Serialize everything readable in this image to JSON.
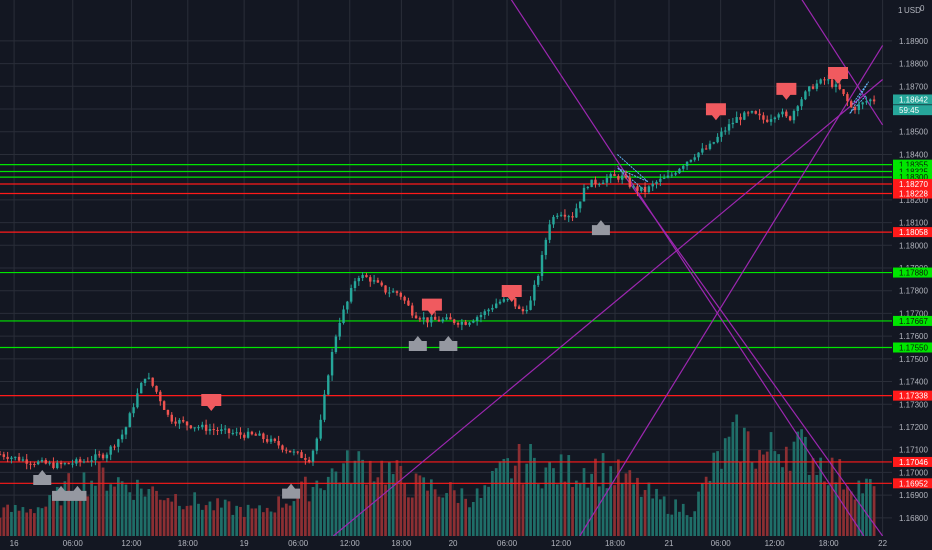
{
  "chart_data": {
    "type": "candlestick",
    "currency": "USD",
    "scale_top_label": "1",
    "scale_top_value": "0",
    "ylim": [
      1.1672,
      1.1908
    ],
    "y_ticks": [
      "1.16800",
      "1.16900",
      "1.17000",
      "1.17100",
      "1.17200",
      "1.17300",
      "1.17400",
      "1.17500",
      "1.17600",
      "1.17700",
      "1.17800",
      "1.17900",
      "1.18000",
      "1.18100",
      "1.18200",
      "1.18300",
      "1.18400",
      "1.18500",
      "1.18600",
      "1.18700",
      "1.18800",
      "1.18900"
    ],
    "x_ticks": [
      {
        "label": "16",
        "t": 0.6
      },
      {
        "label": "06:00",
        "t": 3.1
      },
      {
        "label": "12:00",
        "t": 5.6
      },
      {
        "label": "18:00",
        "t": 8.0
      },
      {
        "label": "19",
        "t": 10.4
      },
      {
        "label": "06:00",
        "t": 12.7
      },
      {
        "label": "12:00",
        "t": 14.9
      },
      {
        "label": "18:00",
        "t": 17.1
      },
      {
        "label": "20",
        "t": 19.3
      },
      {
        "label": "06:00",
        "t": 21.6
      },
      {
        "label": "12:00",
        "t": 23.9
      },
      {
        "label": "18:00",
        "t": 26.2
      },
      {
        "label": "21",
        "t": 28.5
      },
      {
        "label": "06:00",
        "t": 30.7
      },
      {
        "label": "12:00",
        "t": 33.0
      },
      {
        "label": "18:00",
        "t": 35.3
      },
      {
        "label": "22",
        "t": 37.6
      }
    ],
    "horizontal_levels": [
      {
        "price": 1.18355,
        "label": "1.18355",
        "color": "#00e600"
      },
      {
        "price": 1.18325,
        "label": "1.18325",
        "color": "#00e600"
      },
      {
        "price": 1.183,
        "label": "1.18300",
        "color": "#00e600"
      },
      {
        "price": 1.1827,
        "label": "1.18270",
        "color": "#ff1a1a"
      },
      {
        "price": 1.18228,
        "label": "1.18228",
        "color": "#ff1a1a"
      },
      {
        "price": 1.18058,
        "label": "1.18058",
        "color": "#ff1a1a"
      },
      {
        "price": 1.1788,
        "label": "1.17880",
        "color": "#00e600"
      },
      {
        "price": 1.17667,
        "label": "1.17667",
        "color": "#00e600"
      },
      {
        "price": 1.1755,
        "label": "1.17550",
        "color": "#00e600"
      },
      {
        "price": 1.17338,
        "label": "1.17338",
        "color": "#ff1a1a"
      },
      {
        "price": 1.17046,
        "label": "1.17046",
        "color": "#ff1a1a"
      },
      {
        "price": 1.16952,
        "label": "1.16952",
        "color": "#ff1a1a"
      }
    ],
    "price_badges": [
      {
        "price": 1.18642,
        "label": "1.18642",
        "color": "#26a69a"
      },
      {
        "price": 1.18595,
        "label": "59:45",
        "color": "#26a69a"
      }
    ],
    "trend_lines": [
      {
        "from": [
          20.9,
          1.1922
        ],
        "to": [
          36.8,
          1.1672
        ]
      },
      {
        "from": [
          33.3,
          1.1922
        ],
        "to": [
          37.6,
          1.1853
        ]
      },
      {
        "from": [
          14.2,
          1.1672
        ],
        "to": [
          37.6,
          1.1873
        ]
      },
      {
        "from": [
          24.7,
          1.1672
        ],
        "to": [
          37.6,
          1.1888
        ]
      },
      {
        "from": [
          26.3,
          1.1835
        ],
        "to": [
          37.6,
          1.1672
        ]
      }
    ],
    "wedges": [
      {
        "points": [
          [
            26.3,
            1.184
          ],
          [
            27.6,
            1.1828
          ],
          [
            26.3,
            1.1834
          ],
          [
            27.5,
            1.1824
          ]
        ]
      },
      {
        "points": [
          [
            36.3,
            1.1862
          ],
          [
            37.0,
            1.1872
          ],
          [
            36.2,
            1.1858
          ],
          [
            36.9,
            1.1866
          ]
        ]
      }
    ],
    "signals": [
      {
        "kind": "sell",
        "t": 9.0,
        "price": 1.1731
      },
      {
        "kind": "sell",
        "t": 18.4,
        "price": 1.1773
      },
      {
        "kind": "sell",
        "t": 21.8,
        "price": 1.1779
      },
      {
        "kind": "sell",
        "t": 30.5,
        "price": 1.1859
      },
      {
        "kind": "sell",
        "t": 33.5,
        "price": 1.1868
      },
      {
        "kind": "sell",
        "t": 35.7,
        "price": 1.1875
      },
      {
        "kind": "buy",
        "t": 1.8,
        "price": 1.1698
      },
      {
        "kind": "buy",
        "t": 2.6,
        "price": 1.1691
      },
      {
        "kind": "buy",
        "t": 3.3,
        "price": 1.1691
      },
      {
        "kind": "buy",
        "t": 12.4,
        "price": 1.1692
      },
      {
        "kind": "buy",
        "t": 17.8,
        "price": 1.1757
      },
      {
        "kind": "buy",
        "t": 19.1,
        "price": 1.1757
      },
      {
        "kind": "buy",
        "t": 25.6,
        "price": 1.1808
      }
    ],
    "close_keyframes": [
      [
        0,
        1.1708
      ],
      [
        1.2,
        1.1705
      ],
      [
        2.4,
        1.1703
      ],
      [
        3.6,
        1.1705
      ],
      [
        4.5,
        1.1708
      ],
      [
        5.3,
        1.1718
      ],
      [
        5.8,
        1.1733
      ],
      [
        6.2,
        1.1743
      ],
      [
        6.7,
        1.1735
      ],
      [
        7.2,
        1.1724
      ],
      [
        8.0,
        1.1721
      ],
      [
        9.0,
        1.1719
      ],
      [
        10.0,
        1.1717
      ],
      [
        11.0,
        1.1716
      ],
      [
        11.9,
        1.1712
      ],
      [
        12.6,
        1.1708
      ],
      [
        13.2,
        1.1706
      ],
      [
        13.6,
        1.1718
      ],
      [
        14.0,
        1.1745
      ],
      [
        14.4,
        1.1765
      ],
      [
        14.8,
        1.1775
      ],
      [
        15.2,
        1.1787
      ],
      [
        15.8,
        1.1785
      ],
      [
        16.4,
        1.178
      ],
      [
        17.0,
        1.1779
      ],
      [
        17.6,
        1.177
      ],
      [
        18.2,
        1.1767
      ],
      [
        19.0,
        1.1767
      ],
      [
        19.8,
        1.1766
      ],
      [
        20.6,
        1.177
      ],
      [
        21.2,
        1.1775
      ],
      [
        21.8,
        1.1776
      ],
      [
        22.2,
        1.177
      ],
      [
        22.6,
        1.1775
      ],
      [
        23.0,
        1.179
      ],
      [
        23.4,
        1.181
      ],
      [
        23.8,
        1.1815
      ],
      [
        24.4,
        1.1813
      ],
      [
        25.0,
        1.1827
      ],
      [
        25.5,
        1.1828
      ],
      [
        26.0,
        1.183
      ],
      [
        26.5,
        1.183
      ],
      [
        27.0,
        1.1825
      ],
      [
        27.5,
        1.1824
      ],
      [
        28.0,
        1.1828
      ],
      [
        28.5,
        1.183
      ],
      [
        29.0,
        1.1835
      ],
      [
        29.6,
        1.184
      ],
      [
        30.2,
        1.1843
      ],
      [
        30.8,
        1.185
      ],
      [
        31.4,
        1.1856
      ],
      [
        32.0,
        1.1858
      ],
      [
        32.6,
        1.1855
      ],
      [
        33.2,
        1.1859
      ],
      [
        33.6,
        1.1855
      ],
      [
        34.0,
        1.1863
      ],
      [
        34.6,
        1.187
      ],
      [
        35.2,
        1.1873
      ],
      [
        35.8,
        1.1868
      ],
      [
        36.3,
        1.186
      ],
      [
        36.7,
        1.1862
      ],
      [
        37.0,
        1.1864
      ]
    ],
    "volume_keyframes": [
      [
        0,
        0.2
      ],
      [
        2,
        0.25
      ],
      [
        3,
        0.42
      ],
      [
        4.5,
        0.5
      ],
      [
        5.5,
        0.42
      ],
      [
        7,
        0.35
      ],
      [
        9,
        0.25
      ],
      [
        11,
        0.2
      ],
      [
        12.5,
        0.32
      ],
      [
        13.5,
        0.45
      ],
      [
        14.5,
        0.55
      ],
      [
        15.5,
        0.6
      ],
      [
        16.5,
        0.55
      ],
      [
        17.5,
        0.42
      ],
      [
        18.5,
        0.4
      ],
      [
        19.5,
        0.35
      ],
      [
        20.5,
        0.32
      ],
      [
        21.5,
        0.55
      ],
      [
        22.5,
        0.62
      ],
      [
        23.5,
        0.52
      ],
      [
        24.5,
        0.55
      ],
      [
        25.5,
        0.58
      ],
      [
        26.5,
        0.48
      ],
      [
        27.5,
        0.36
      ],
      [
        28.5,
        0.25
      ],
      [
        29.5,
        0.22
      ],
      [
        30.5,
        0.6
      ],
      [
        31.5,
        0.82
      ],
      [
        32.5,
        0.66
      ],
      [
        33.5,
        0.78
      ],
      [
        34.5,
        0.68
      ],
      [
        35.5,
        0.54
      ],
      [
        36.5,
        0.42
      ],
      [
        37,
        0.4
      ]
    ],
    "colors": {
      "background": "#131722",
      "grid": "#2a2e39",
      "up": "#26a69a",
      "down": "#ef5350",
      "volume_up": "#1f6e68",
      "volume_down": "#8c2f33",
      "trend_line": "#9c27b0",
      "sell_marker": "#f05a5f",
      "buy_marker": "#9598a1",
      "axis_text": "#b2b5be"
    }
  }
}
